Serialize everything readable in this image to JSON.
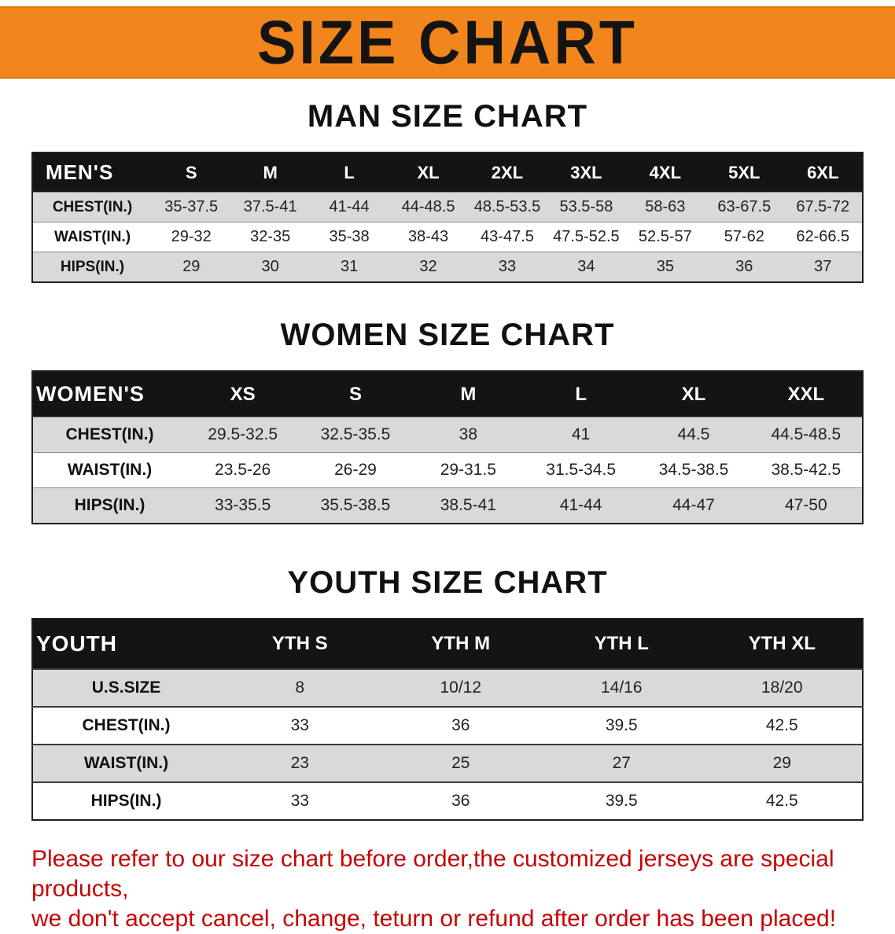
{
  "banner": {
    "title": "SIZE CHART",
    "background_color": "#f2861d",
    "text_color": "#141414"
  },
  "sections": [
    {
      "title": "MAN SIZE CHART"
    },
    {
      "title": "WOMEN SIZE CHART"
    },
    {
      "title": "YOUTH SIZE CHART"
    }
  ],
  "chart_data": [
    {
      "type": "table",
      "title": "MAN SIZE CHART",
      "header": [
        "MEN'S",
        "S",
        "M",
        "L",
        "XL",
        "2XL",
        "3XL",
        "4XL",
        "5XL",
        "6XL"
      ],
      "rows": [
        [
          "CHEST(IN.)",
          "35-37.5",
          "37.5-41",
          "41-44",
          "44-48.5",
          "48.5-53.5",
          "53.5-58",
          "58-63",
          "63-67.5",
          "67.5-72"
        ],
        [
          "WAIST(IN.)",
          "29-32",
          "32-35",
          "35-38",
          "38-43",
          "43-47.5",
          "47.5-52.5",
          "52.5-57",
          "57-62",
          "62-66.5"
        ],
        [
          "HIPS(IN.)",
          "29",
          "30",
          "31",
          "32",
          "33",
          "34",
          "35",
          "36",
          "37"
        ]
      ]
    },
    {
      "type": "table",
      "title": "WOMEN SIZE CHART",
      "header": [
        "WOMEN'S",
        "XS",
        "S",
        "M",
        "L",
        "XL",
        "XXL"
      ],
      "rows": [
        [
          "CHEST(IN.)",
          "29.5-32.5",
          "32.5-35.5",
          "38",
          "41",
          "44.5",
          "44.5-48.5"
        ],
        [
          "WAIST(IN.)",
          "23.5-26",
          "26-29",
          "29-31.5",
          "31.5-34.5",
          "34.5-38.5",
          "38.5-42.5"
        ],
        [
          "HIPS(IN.)",
          "33-35.5",
          "35.5-38.5",
          "38.5-41",
          "41-44",
          "44-47",
          "47-50"
        ]
      ]
    },
    {
      "type": "table",
      "title": "YOUTH SIZE CHART",
      "header": [
        "YOUTH",
        "YTH S",
        "YTH M",
        "YTH L",
        "YTH XL"
      ],
      "rows": [
        [
          "U.S.SIZE",
          "8",
          "10/12",
          "14/16",
          "18/20"
        ],
        [
          "CHEST(IN.)",
          "33",
          "36",
          "39.5",
          "42.5"
        ],
        [
          "WAIST(IN.)",
          "23",
          "25",
          "27",
          "29"
        ],
        [
          "HIPS(IN.)",
          "33",
          "36",
          "39.5",
          "42.5"
        ]
      ]
    }
  ],
  "footer": {
    "line1": "Please refer to our size chart before order,the customized jerseys are special products,",
    "line2": "we don't accept cancel, change, teturn or refund after order has been placed!",
    "text_color": "#c40505"
  }
}
